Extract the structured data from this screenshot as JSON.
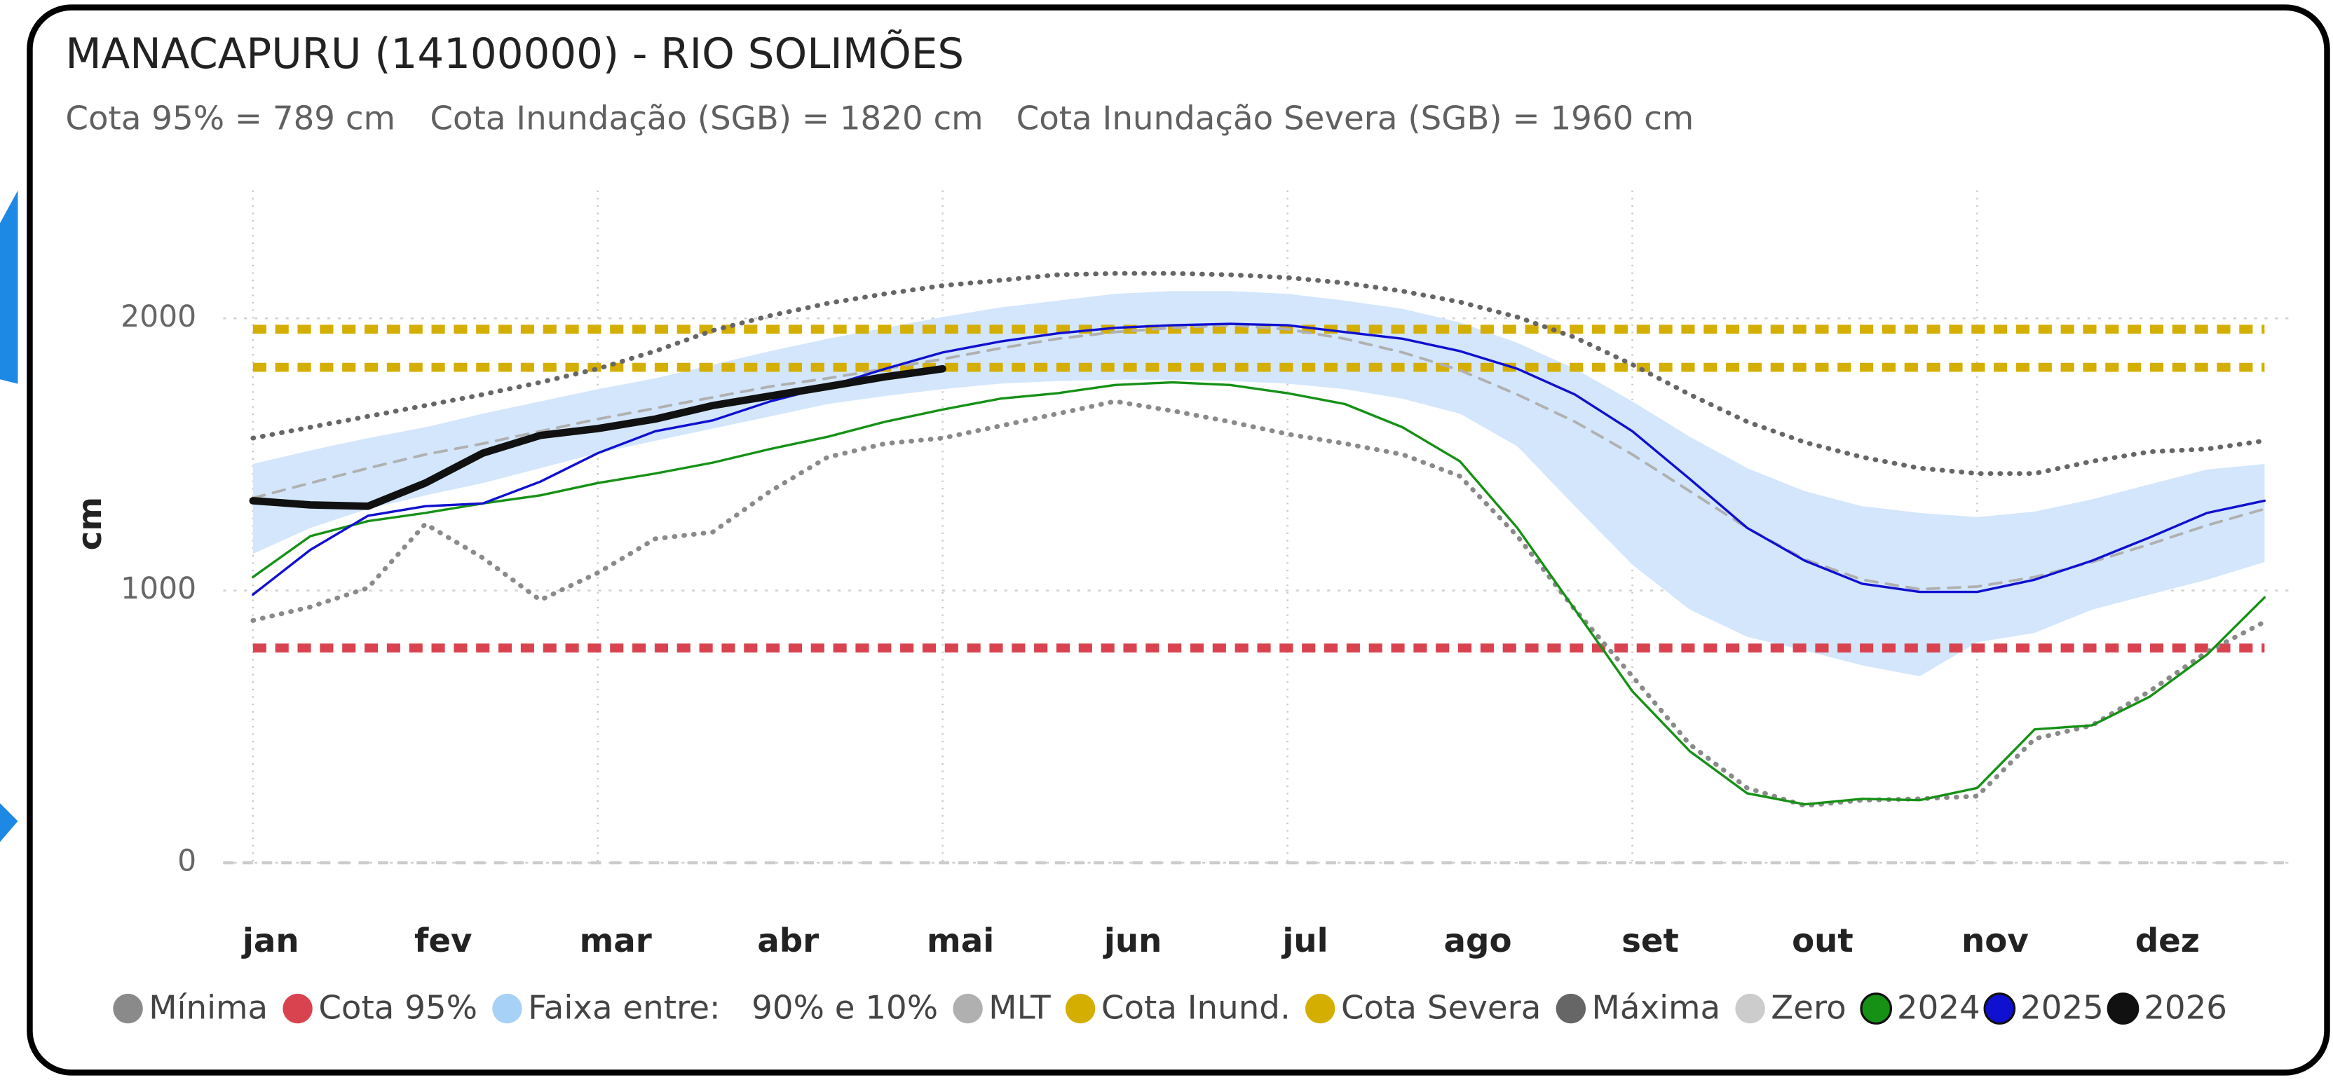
{
  "chart_data": {
    "type": "line",
    "title": "MANACAPURU (14100000) - RIO SOLIMÕES",
    "subtitle": [
      "Cota 95% = 789 cm",
      "Cota Inundação (SGB) = 1820 cm",
      "Cota Inundação Severa (SGB) = 1960 cm"
    ],
    "y_label": "cm",
    "categories": [
      "jan",
      null,
      null,
      "fev",
      null,
      null,
      "mar",
      null,
      null,
      "abr",
      null,
      null,
      "mai",
      null,
      null,
      "jun",
      null,
      null,
      "jul",
      null,
      null,
      "ago",
      null,
      null,
      "set",
      null,
      null,
      "out",
      null,
      null,
      "nov",
      null,
      null,
      "dez",
      null,
      null
    ],
    "ylim": [
      0,
      2400
    ],
    "yticks": [
      0,
      1000,
      2000
    ],
    "grid": true,
    "series": [
      {
        "name": "Mínima",
        "kind": "line",
        "dash": "dotted",
        "color": "#8a8a8a",
        "values": [
          890,
          940,
          1010,
          1245,
          1120,
          965,
          1065,
          1190,
          1215,
          1365,
          1490,
          1540,
          1560,
          1605,
          1650,
          1695,
          1660,
          1620,
          1575,
          1540,
          1500,
          1420,
          1200,
          930,
          685,
          435,
          275,
          210,
          230,
          235,
          245,
          455,
          505,
          630,
          775,
          885
        ]
      },
      {
        "name": "Cota 95%",
        "kind": "hline",
        "dash": "dashed",
        "color": "#d9434f",
        "value": 789
      },
      {
        "name": "Faixa entre:   90% e 10%",
        "kind": "band",
        "color": "#d3e6fb",
        "upper": [
          1465,
          1515,
          1560,
          1600,
          1650,
          1695,
          1740,
          1780,
          1830,
          1880,
          1925,
          1965,
          2005,
          2040,
          2065,
          2090,
          2100,
          2100,
          2090,
          2065,
          2035,
          1985,
          1910,
          1815,
          1695,
          1565,
          1450,
          1365,
          1310,
          1285,
          1270,
          1290,
          1335,
          1390,
          1445,
          1465
        ],
        "lower": [
          1135,
          1230,
          1300,
          1350,
          1395,
          1450,
          1505,
          1550,
          1595,
          1640,
          1685,
          1715,
          1740,
          1760,
          1770,
          1775,
          1775,
          1770,
          1760,
          1740,
          1705,
          1650,
          1530,
          1310,
          1095,
          930,
          830,
          780,
          725,
          685,
          810,
          845,
          930,
          985,
          1040,
          1105
        ]
      },
      {
        "name": "MLT",
        "kind": "line",
        "dash": "dashed",
        "color": "#b0b0b0",
        "values": [
          1340,
          1395,
          1450,
          1500,
          1540,
          1585,
          1630,
          1670,
          1710,
          1750,
          1780,
          1815,
          1850,
          1890,
          1925,
          1950,
          1965,
          1975,
          1960,
          1925,
          1875,
          1810,
          1720,
          1620,
          1500,
          1365,
          1230,
          1115,
          1040,
          1005,
          1015,
          1050,
          1105,
          1170,
          1240,
          1300
        ]
      },
      {
        "name": "Cota Inund.",
        "kind": "hline",
        "dash": "dashed",
        "color": "#d4ae00",
        "value": 1820
      },
      {
        "name": "Cota Severa",
        "kind": "hline",
        "dash": "dashed",
        "color": "#d4ae00",
        "value": 1960
      },
      {
        "name": "Máxima",
        "kind": "line",
        "dash": "dotted",
        "color": "#666666",
        "values": [
          1560,
          1600,
          1640,
          1680,
          1720,
          1765,
          1815,
          1880,
          1955,
          2010,
          2055,
          2090,
          2120,
          2140,
          2160,
          2165,
          2165,
          2160,
          2150,
          2130,
          2100,
          2060,
          2005,
          1930,
          1830,
          1720,
          1620,
          1545,
          1490,
          1450,
          1430,
          1430,
          1475,
          1510,
          1520,
          1550
        ]
      },
      {
        "name": "Zero",
        "kind": "hline",
        "dash": "dashed",
        "color": "#cccccc",
        "value": 0
      },
      {
        "name": "2024",
        "kind": "line",
        "dash": "solid",
        "color": "#169116",
        "values": [
          1050,
          1200,
          1255,
          1285,
          1320,
          1350,
          1395,
          1430,
          1470,
          1520,
          1565,
          1620,
          1665,
          1705,
          1725,
          1755,
          1765,
          1755,
          1725,
          1685,
          1600,
          1475,
          1230,
          930,
          630,
          410,
          255,
          215,
          235,
          230,
          275,
          490,
          505,
          610,
          765,
          975
        ]
      },
      {
        "name": "2025",
        "kind": "line",
        "dash": "solid",
        "color": "#1010d0",
        "values": [
          985,
          1150,
          1275,
          1310,
          1320,
          1400,
          1505,
          1585,
          1625,
          1695,
          1750,
          1815,
          1875,
          1915,
          1945,
          1965,
          1975,
          1980,
          1975,
          1950,
          1925,
          1880,
          1815,
          1720,
          1585,
          1410,
          1230,
          1110,
          1025,
          995,
          995,
          1040,
          1110,
          1195,
          1285,
          1330
        ]
      },
      {
        "name": "2026",
        "kind": "line",
        "dash": "solid",
        "color": "#111111",
        "values": [
          1330,
          1315,
          1310,
          1395,
          1505,
          1570,
          1595,
          1630,
          1680,
          1715,
          1750,
          1785,
          1815,
          null,
          null,
          null,
          null,
          null,
          null,
          null,
          null,
          null,
          null,
          null,
          null,
          null,
          null,
          null,
          null,
          null,
          null,
          null,
          null,
          null,
          null,
          null
        ]
      }
    ]
  }
}
